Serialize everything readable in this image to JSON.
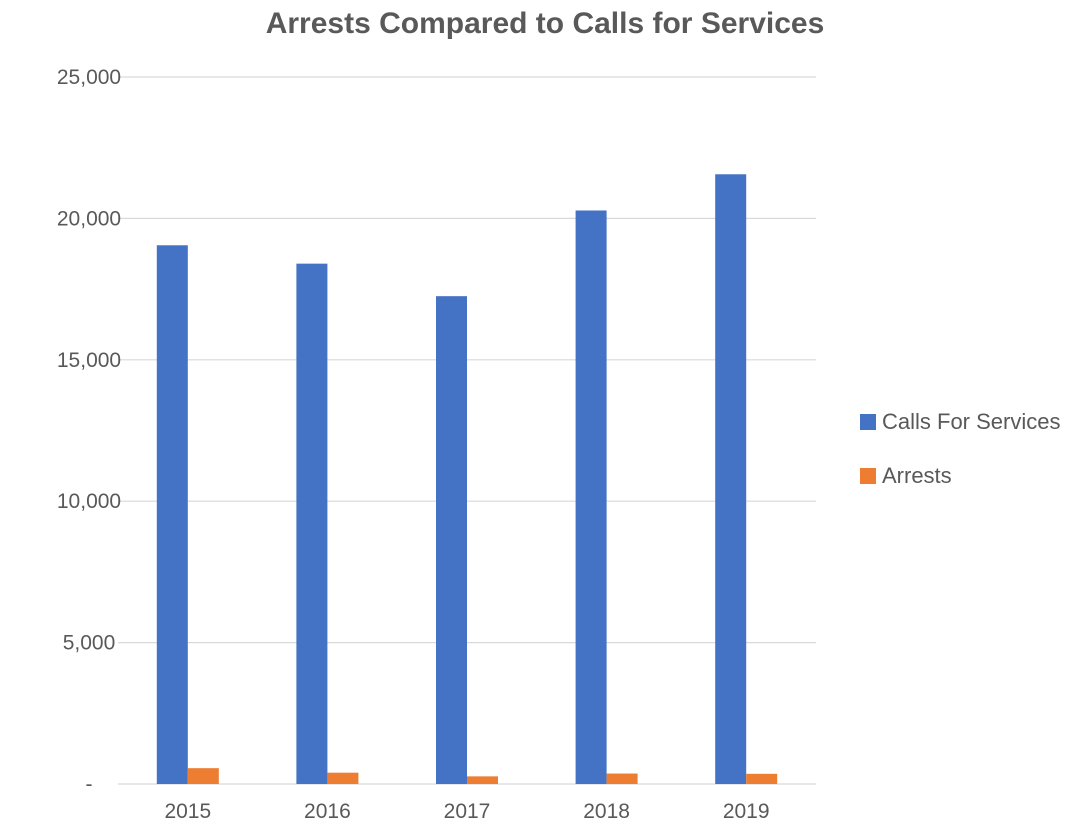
{
  "chart_data": {
    "type": "bar",
    "title": "Arrests Compared to Calls for Services",
    "xlabel": "",
    "ylabel": "",
    "categories": [
      "2015",
      "2016",
      "2017",
      "2018",
      "2019"
    ],
    "series": [
      {
        "name": "Calls For Services",
        "color": "#4472C4",
        "values": [
          19050,
          18400,
          17250,
          20280,
          21560
        ]
      },
      {
        "name": "Arrests",
        "color": "#ED7D31",
        "values": [
          560,
          400,
          270,
          370,
          360
        ]
      }
    ],
    "ylim": [
      0,
      25000
    ],
    "yticks": [
      {
        "value": 0,
        "label": "-"
      },
      {
        "value": 5000,
        "label": "5,000"
      },
      {
        "value": 10000,
        "label": "10,000"
      },
      {
        "value": 15000,
        "label": "15,000"
      },
      {
        "value": 20000,
        "label": "20,000"
      },
      {
        "value": 25000,
        "label": "25,000"
      }
    ],
    "grid": true,
    "legend_position": "right"
  }
}
